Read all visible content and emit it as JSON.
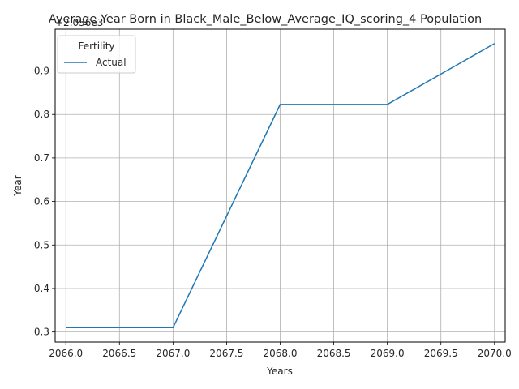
{
  "chart_data": {
    "type": "line",
    "title": "Average Year Born in Black_Male_Below_Average_IQ_scoring_4 Population",
    "xlabel": "Years",
    "ylabel": "Year",
    "offset_text": "+2.036e3",
    "x": [
      2066,
      2067,
      2068,
      2069,
      2070
    ],
    "series": [
      {
        "name": "Actual",
        "color": "#1f77b4",
        "values": [
          0.31,
          0.31,
          0.823,
          0.823,
          0.963
        ]
      }
    ],
    "xlim": [
      2065.9,
      2070.1
    ],
    "ylim": [
      0.277,
      0.996
    ],
    "xticks": [
      "2066.0",
      "2066.5",
      "2067.0",
      "2067.5",
      "2068.0",
      "2068.5",
      "2069.0",
      "2069.5",
      "2070.0"
    ],
    "yticks": [
      "0.3",
      "0.4",
      "0.5",
      "0.6",
      "0.7",
      "0.8",
      "0.9"
    ],
    "grid": true,
    "legend": {
      "title": "Fertility",
      "placement": "upper-left"
    }
  }
}
